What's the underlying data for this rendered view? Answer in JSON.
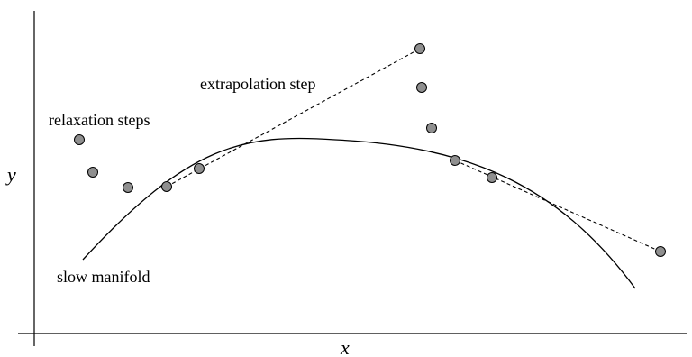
{
  "axes": {
    "x_label": "x",
    "y_label": "y"
  },
  "labels": {
    "relaxation": "relaxation steps",
    "extrapolation": "extrapolation step",
    "manifold": "slow manifold"
  },
  "colors": {
    "point_fill": "#8f8f8f",
    "stroke": "#000000"
  }
}
